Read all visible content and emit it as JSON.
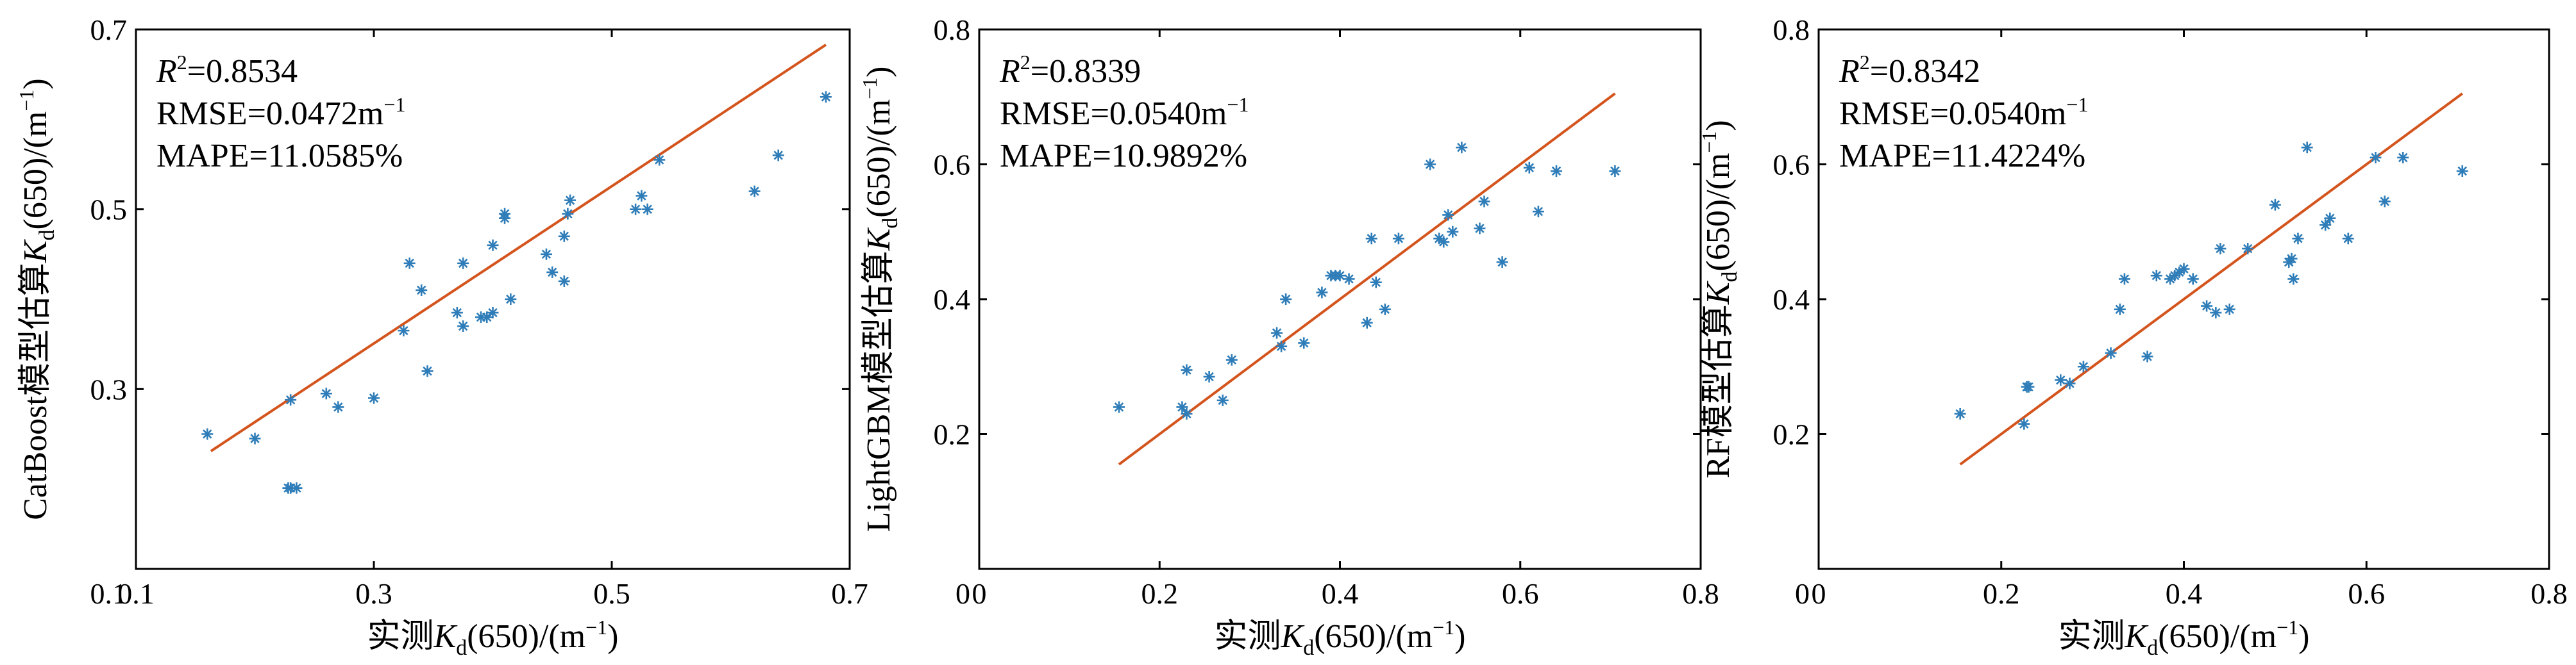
{
  "colors": {
    "marker": "#2f7db8",
    "fit_line": "#d4541d",
    "axes": "#000000"
  },
  "marker_symbol": "*",
  "chart_data": [
    {
      "type": "scatter",
      "x_label": {
        "prefix": "实测",
        "var": "K",
        "sub": "d",
        "suffix": "(650)/(m",
        "sup": "−1",
        "close": ")"
      },
      "y_label": {
        "prefix": "CatBoost模型估算",
        "var": "K",
        "sub": "d",
        "suffix": "(650)/(m",
        "sup": "−1",
        "close": ")"
      },
      "xlim": [
        0.1,
        0.7
      ],
      "ylim": [
        0.1,
        0.7
      ],
      "xticks": [
        0.1,
        0.3,
        0.5,
        0.7
      ],
      "yticks": [
        0.3,
        0.5,
        0.7
      ],
      "xtick_labels": [
        "0.1",
        "0.3",
        "0.5",
        "0.7"
      ],
      "ytick_labels": [
        "0.3",
        "0.5",
        "0.7"
      ],
      "bottom_left_label": "0.1",
      "stats": {
        "r2_label": "R",
        "r2_sup": "2",
        "r2_value": "=0.8534",
        "rmse_text": "RMSE=0.0472m",
        "rmse_sup": "−1",
        "mape_text": "MAPE=11.0585%"
      },
      "fit_line": {
        "x": [
          0.163,
          0.68
        ],
        "y": [
          0.231,
          0.683
        ]
      },
      "x": [
        0.16,
        0.2,
        0.23,
        0.228,
        0.235,
        0.23,
        0.26,
        0.27,
        0.3,
        0.325,
        0.33,
        0.34,
        0.345,
        0.37,
        0.375,
        0.375,
        0.39,
        0.395,
        0.4,
        0.4,
        0.41,
        0.41,
        0.415,
        0.445,
        0.45,
        0.46,
        0.46,
        0.463,
        0.465,
        0.52,
        0.525,
        0.53,
        0.54,
        0.62,
        0.64,
        0.68
      ],
      "y": [
        0.25,
        0.245,
        0.288,
        0.19,
        0.19,
        0.19,
        0.295,
        0.28,
        0.29,
        0.365,
        0.44,
        0.41,
        0.32,
        0.385,
        0.37,
        0.44,
        0.38,
        0.38,
        0.46,
        0.385,
        0.49,
        0.495,
        0.4,
        0.45,
        0.43,
        0.47,
        0.42,
        0.495,
        0.51,
        0.5,
        0.515,
        0.5,
        0.555,
        0.52,
        0.56,
        0.625
      ]
    },
    {
      "type": "scatter",
      "x_label": {
        "prefix": "实测",
        "var": "K",
        "sub": "d",
        "suffix": "(650)/(m",
        "sup": "−1",
        "close": ")"
      },
      "y_label": {
        "prefix": "LightGBM模型估算",
        "var": "K",
        "sub": "d",
        "suffix": "(650)/(m",
        "sup": "−1",
        "close": ")"
      },
      "xlim": [
        0,
        0.8
      ],
      "ylim": [
        0,
        0.8
      ],
      "xticks": [
        0,
        0.2,
        0.4,
        0.6,
        0.8
      ],
      "yticks": [
        0.2,
        0.4,
        0.6,
        0.8
      ],
      "xtick_labels": [
        "0",
        "0.2",
        "0.4",
        "0.6",
        "0.8"
      ],
      "ytick_labels": [
        "0.2",
        "0.4",
        "0.6",
        "0.8"
      ],
      "bottom_left_label": "0",
      "stats": {
        "r2_label": "R",
        "r2_sup": "2",
        "r2_value": "=0.8339",
        "rmse_text": "RMSE=0.0540m",
        "rmse_sup": "−1",
        "mape_text": "MAPE=10.9892%"
      },
      "fit_line": {
        "x": [
          0.155,
          0.705
        ],
        "y": [
          0.155,
          0.705
        ]
      },
      "x": [
        0.155,
        0.225,
        0.23,
        0.23,
        0.255,
        0.27,
        0.28,
        0.33,
        0.335,
        0.34,
        0.36,
        0.38,
        0.39,
        0.395,
        0.4,
        0.41,
        0.43,
        0.435,
        0.44,
        0.45,
        0.465,
        0.5,
        0.51,
        0.515,
        0.52,
        0.525,
        0.535,
        0.555,
        0.56,
        0.58,
        0.61,
        0.62,
        0.64,
        0.705
      ],
      "y": [
        0.24,
        0.24,
        0.23,
        0.295,
        0.285,
        0.25,
        0.31,
        0.35,
        0.33,
        0.4,
        0.335,
        0.41,
        0.435,
        0.435,
        0.435,
        0.43,
        0.365,
        0.49,
        0.425,
        0.385,
        0.49,
        0.6,
        0.49,
        0.485,
        0.525,
        0.5,
        0.625,
        0.505,
        0.545,
        0.455,
        0.595,
        0.53,
        0.59,
        0.59
      ]
    },
    {
      "type": "scatter",
      "x_label": {
        "prefix": "实测",
        "var": "K",
        "sub": "d",
        "suffix": "(650)/(m",
        "sup": "−1",
        "close": ")"
      },
      "y_label": {
        "prefix": "RF模型估算",
        "var": "K",
        "sub": "d",
        "suffix": "(650)/(m",
        "sup": "−1",
        "close": ")"
      },
      "xlim": [
        0,
        0.8
      ],
      "ylim": [
        0,
        0.8
      ],
      "xticks": [
        0,
        0.2,
        0.4,
        0.6,
        0.8
      ],
      "yticks": [
        0.2,
        0.4,
        0.6,
        0.8
      ],
      "xtick_labels": [
        "0",
        "0.2",
        "0.4",
        "0.6",
        "0.8"
      ],
      "ytick_labels": [
        "0.2",
        "0.4",
        "0.6",
        "0.8"
      ],
      "bottom_left_label": "0",
      "stats": {
        "r2_label": "R",
        "r2_sup": "2",
        "r2_value": "=0.8342",
        "rmse_text": "RMSE=0.0540m",
        "rmse_sup": "−1",
        "mape_text": "MAPE=11.4224%"
      },
      "fit_line": {
        "x": [
          0.155,
          0.705
        ],
        "y": [
          0.155,
          0.705
        ]
      },
      "x": [
        0.155,
        0.225,
        0.228,
        0.23,
        0.265,
        0.275,
        0.29,
        0.32,
        0.33,
        0.335,
        0.36,
        0.37,
        0.385,
        0.39,
        0.395,
        0.4,
        0.41,
        0.425,
        0.435,
        0.44,
        0.45,
        0.47,
        0.5,
        0.515,
        0.518,
        0.52,
        0.525,
        0.535,
        0.555,
        0.56,
        0.58,
        0.61,
        0.62,
        0.64,
        0.705
      ],
      "y": [
        0.23,
        0.215,
        0.27,
        0.27,
        0.28,
        0.275,
        0.3,
        0.32,
        0.385,
        0.43,
        0.315,
        0.435,
        0.43,
        0.435,
        0.44,
        0.445,
        0.43,
        0.39,
        0.38,
        0.475,
        0.385,
        0.475,
        0.54,
        0.455,
        0.46,
        0.43,
        0.49,
        0.625,
        0.51,
        0.52,
        0.49,
        0.61,
        0.545,
        0.61,
        0.59
      ]
    }
  ]
}
